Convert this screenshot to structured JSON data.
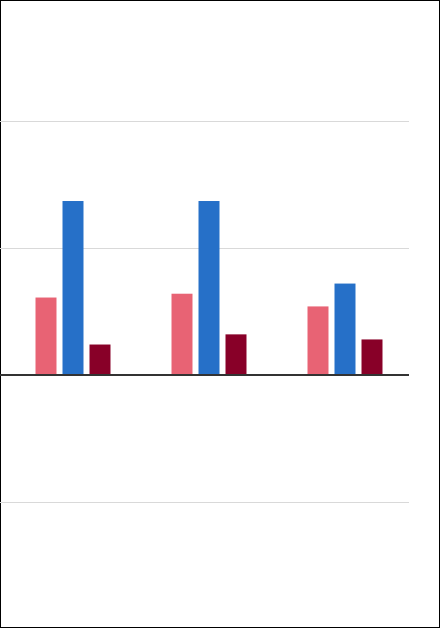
{
  "chart_data": {
    "type": "bar",
    "categories": [
      null,
      null,
      null
    ],
    "series": [
      {
        "color": "#e86374",
        "values": [
          0.61,
          0.64,
          0.54
        ]
      },
      {
        "color": "#2670c8",
        "values": [
          1.37,
          1.37,
          0.72
        ]
      },
      {
        "color": "#880028",
        "values": [
          0.24,
          0.32,
          0.28
        ]
      }
    ],
    "ylim": [
      -2,
      3
    ],
    "yticks": [
      -1,
      0,
      1,
      2
    ],
    "grid": true
  }
}
